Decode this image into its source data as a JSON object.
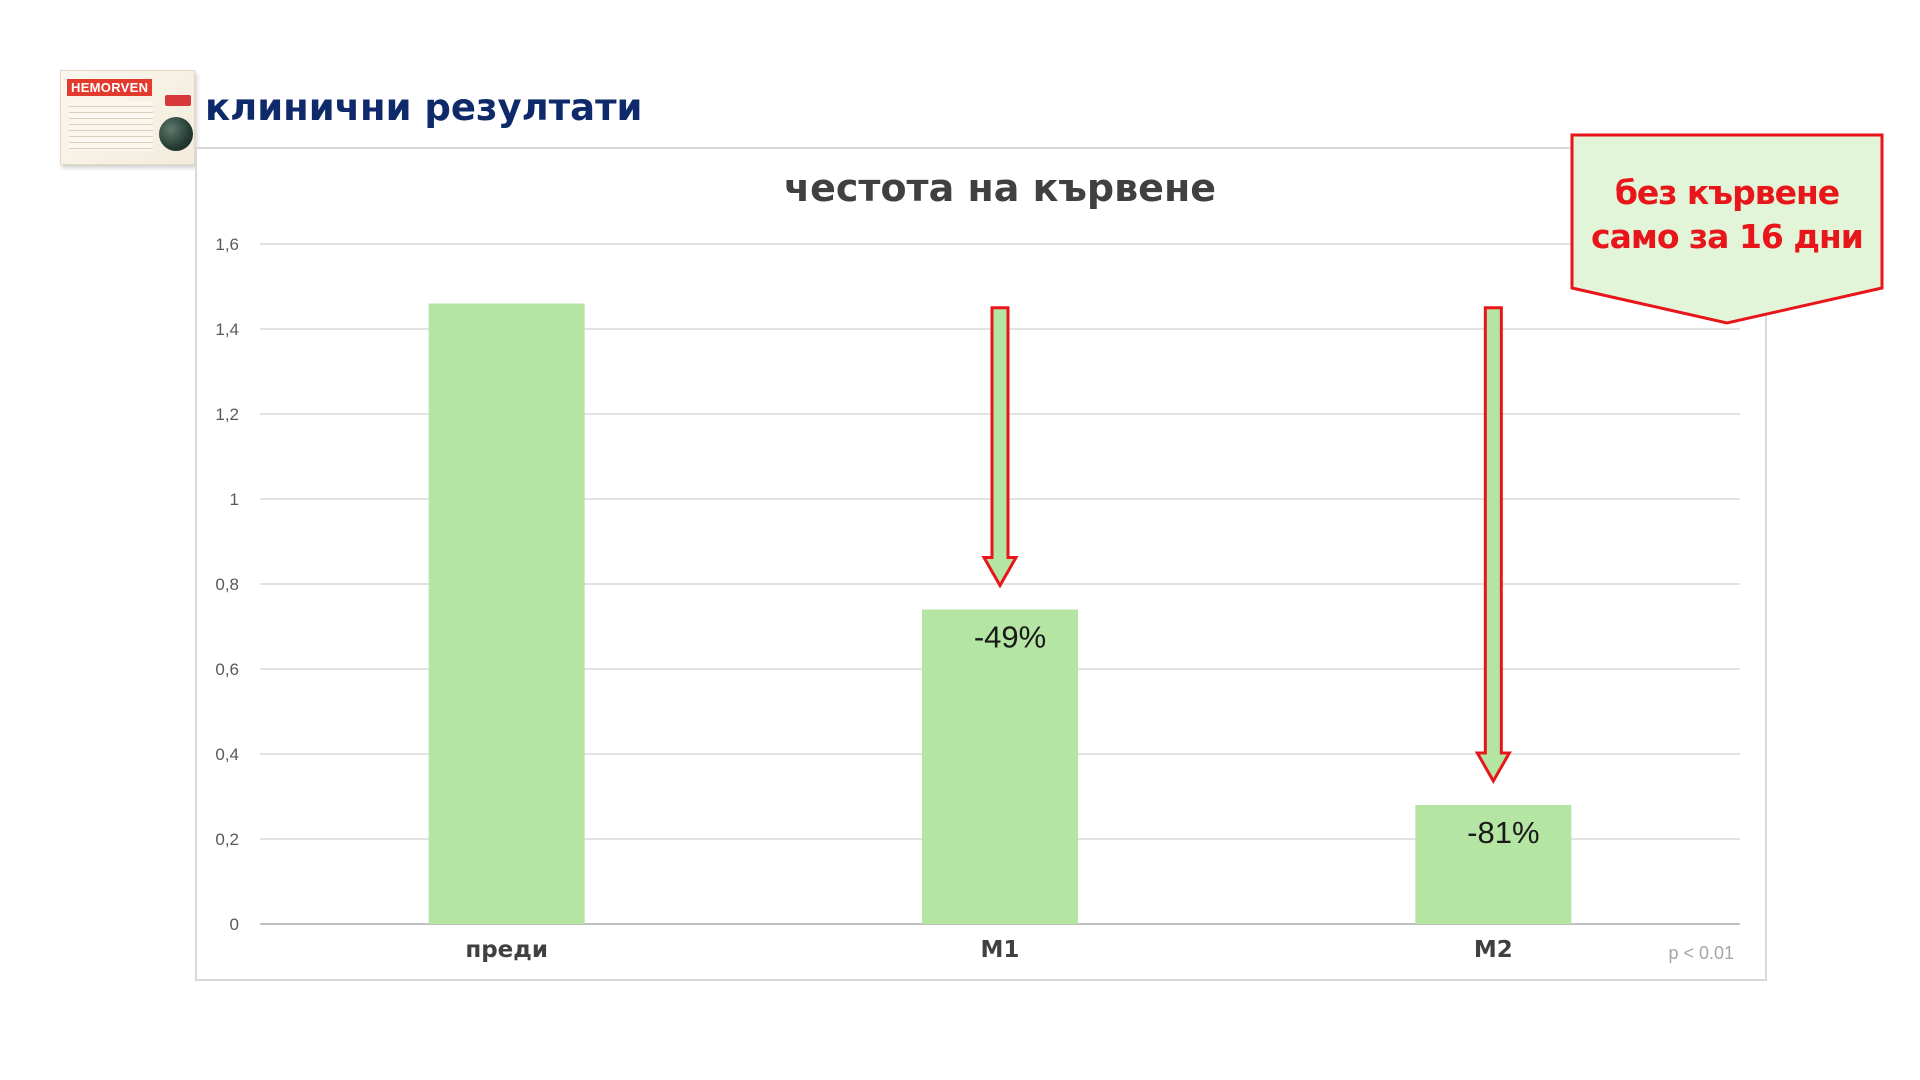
{
  "header": {
    "title": "клинични резултати",
    "product_brand": "HEMORVEN"
  },
  "callout": {
    "line1": "без кървене",
    "line2": "само за 16 дни",
    "text_color": "#e8161a",
    "fill_color": "#e2f5d8",
    "border_color": "#e8161a"
  },
  "chart_data": {
    "type": "bar",
    "title": "честота на кървене",
    "categories": [
      "преди",
      "М1",
      "М2"
    ],
    "values": [
      1.46,
      0.74,
      0.28
    ],
    "data_labels": [
      "",
      "-49%",
      "-81%"
    ],
    "ylim": [
      0,
      1.6
    ],
    "yticks": [
      0,
      0.2,
      0.4,
      0.6,
      0.8,
      1,
      1.2,
      1.4,
      1.6
    ],
    "ytick_labels": [
      "0",
      "0,2",
      "0,4",
      "0,6",
      "0,8",
      "1",
      "1,2",
      "1,4",
      "1,6"
    ],
    "grid": true,
    "annotation": "p < 0.01",
    "bar_color": "#b5e5a3",
    "arrow_color": "#e8161a",
    "arrow_fill": "#b5e5a3"
  }
}
